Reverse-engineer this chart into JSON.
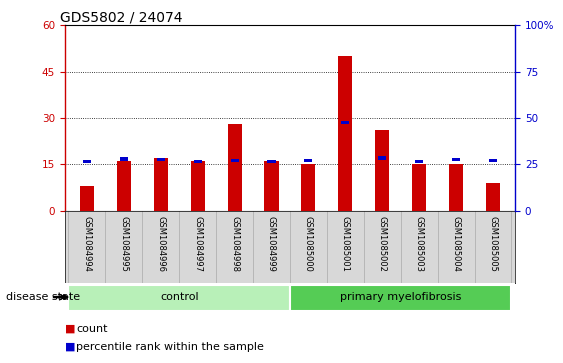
{
  "title": "GDS5802 / 24074",
  "samples": [
    "GSM1084994",
    "GSM1084995",
    "GSM1084996",
    "GSM1084997",
    "GSM1084998",
    "GSM1084999",
    "GSM1085000",
    "GSM1085001",
    "GSM1085002",
    "GSM1085003",
    "GSM1085004",
    "GSM1085005"
  ],
  "count_values": [
    8,
    16,
    17,
    16,
    28,
    16,
    15,
    50,
    26,
    15,
    15,
    9
  ],
  "percentile_values": [
    26.5,
    28.0,
    27.5,
    26.5,
    27.0,
    26.5,
    27.0,
    47.5,
    28.5,
    26.5,
    27.5,
    27.0
  ],
  "groups": [
    {
      "label": "control",
      "start": 0,
      "end": 6,
      "color": "#b8f0b8"
    },
    {
      "label": "primary myelofibrosis",
      "start": 6,
      "end": 12,
      "color": "#55cc55"
    }
  ],
  "left_ylim": [
    0,
    60
  ],
  "right_ylim": [
    0,
    100
  ],
  "left_yticks": [
    0,
    15,
    30,
    45,
    60
  ],
  "right_yticks": [
    0,
    25,
    50,
    75,
    100
  ],
  "left_tick_color": "#cc0000",
  "right_tick_color": "#0000cc",
  "bar_color": "#cc0000",
  "dot_color": "#0000cc",
  "xtick_bg_color": "#d8d8d8",
  "grid_color": "#000000",
  "disease_state_label": "disease state",
  "legend_count_label": "count",
  "legend_percentile_label": "percentile rank within the sample",
  "title_fontsize": 10,
  "tick_fontsize": 7.5,
  "sample_fontsize": 6.0,
  "label_fontsize": 8.0
}
